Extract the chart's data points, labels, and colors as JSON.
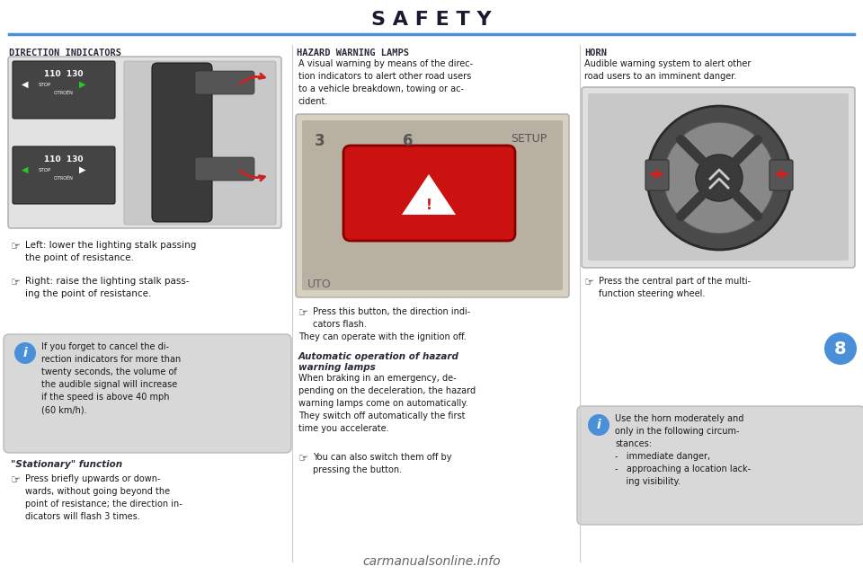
{
  "title": "S A F E T Y",
  "title_color": "#1a1a2e",
  "line_color": "#4a90d9",
  "bg_color": "#ffffff",
  "page_number": "8",
  "page_num_color": "#ffffff",
  "page_num_bg": "#4a90d9",
  "section1_header": "DIRECTION INDICATORS",
  "section2_header": "HAZARD WARNING LAMPS",
  "section3_header": "HORN",
  "section1_text1": "Left: lower the lighting stalk passing\nthe point of resistance.",
  "section1_text2": "Right: raise the lighting stalk pass-\ning the point of resistance.",
  "section2_desc": "A visual warning by means of the direc-\ntion indicators to alert other road users\nto a vehicle breakdown, towing or ac-\ncident.",
  "section2_bullet": "Press this button, the direction indi-\ncators flash.",
  "section2_note": "They can operate with the ignition off.",
  "section2_auto_header": "Automatic operation of hazard\nwarning lamps",
  "section2_auto_text": "When braking in an emergency, de-\npending on the deceleration, the hazard\nwarning lamps come on automatically.\nThey switch off automatically the first\ntime you accelerate.",
  "section2_auto_bullet": "You can also switch them off by\npressing the button.",
  "section3_desc": "Audible warning system to alert other\nroad users to an imminent danger.",
  "section3_bullet": "Press the central part of the multi-\nfunction steering wheel.",
  "info_box1_text": "If you forget to cancel the di-\nrection indicators for more than\ntwenty seconds, the volume of\nthe audible signal will increase\nif the speed is above 40 mph\n(60 km/h).",
  "info_box2_text": "Use the horn moderately and\nonly in the following circum-\nstances:\n-   immediate danger,\n-   approaching a location lack-\n    ing visibility.",
  "stationary_header": "\"Stationary\" function",
  "stationary_text": "Press briefly upwards or down-\nwards, without going beyond the\npoint of resistance; the direction in-\ndicators will flash 3 times.",
  "watermark": "carmanualsonline.info",
  "header_color": "#2a2a3a",
  "body_color": "#1a1a1a",
  "info_bg": "#d8d8d8",
  "info_icon_bg": "#4a90d9"
}
